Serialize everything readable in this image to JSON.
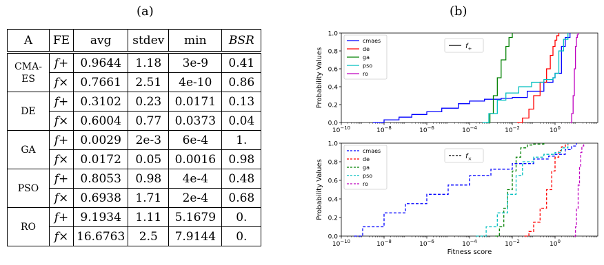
{
  "panel_a_label": "(a)",
  "panel_b_label": "(b)",
  "table": {
    "headers": [
      "A",
      "FE",
      "avg",
      "stdev",
      "min",
      "BSR"
    ],
    "groups": [
      {
        "name_lines": [
          "CMA-",
          "ES"
        ],
        "rows": [
          {
            "fe": "f+",
            "avg": "0.9644",
            "stdev": "1.18",
            "min": "3e-9",
            "bsr": "0.41"
          },
          {
            "fe": "f×",
            "avg": "0.7661",
            "stdev": "2.51",
            "min": "4e-10",
            "bsr": "0.86"
          }
        ]
      },
      {
        "name_lines": [
          "DE"
        ],
        "rows": [
          {
            "fe": "f+",
            "avg": "0.3102",
            "stdev": "0.23",
            "min": "0.0171",
            "bsr": "0.13"
          },
          {
            "fe": "f×",
            "avg": "0.6004",
            "stdev": "0.77",
            "min": "0.0373",
            "bsr": "0.04"
          }
        ]
      },
      {
        "name_lines": [
          "GA"
        ],
        "rows": [
          {
            "fe": "f+",
            "avg": "0.0029",
            "stdev": "2e-3",
            "min": "6e-4",
            "bsr": "1."
          },
          {
            "fe": "f×",
            "avg": "0.0172",
            "stdev": "0.05",
            "min": "0.0016",
            "bsr": "0.98"
          }
        ]
      },
      {
        "name_lines": [
          "PSO"
        ],
        "rows": [
          {
            "fe": "f+",
            "avg": "0.8053",
            "stdev": "0.98",
            "min": "4e-4",
            "bsr": "0.48"
          },
          {
            "fe": "f×",
            "avg": "0.6938",
            "stdev": "1.71",
            "min": "2e-4",
            "bsr": "0.68"
          }
        ]
      },
      {
        "name_lines": [
          "RO"
        ],
        "rows": [
          {
            "fe": "f+",
            "avg": "9.1934",
            "stdev": "1.11",
            "min": "5.1679",
            "bsr": "0."
          },
          {
            "fe": "f×",
            "avg": "16.6763",
            "stdev": "2.5",
            "min": "7.9144",
            "bsr": "0."
          }
        ]
      }
    ],
    "bold": [
      "0-0-min",
      "0-1-min",
      "2-0-avg",
      "2-0-stdev",
      "2-0-bsr",
      "2-1-avg",
      "2-1-stdev",
      "2-1-bsr"
    ]
  },
  "chart_data": [
    {
      "type": "line",
      "ylabel": "Probability Values",
      "xlabel": "",
      "x_scale": "log",
      "xlim": [
        1e-10,
        100
      ],
      "ylim": [
        0,
        1
      ],
      "x_ticks": [
        {
          "v": 1e-10,
          "base": "10",
          "exp": "−10"
        },
        {
          "v": 1e-08,
          "base": "10",
          "exp": "−8"
        },
        {
          "v": 1e-06,
          "base": "10",
          "exp": "−6"
        },
        {
          "v": 0.0001,
          "base": "10",
          "exp": "−4"
        },
        {
          "v": 0.01,
          "base": "10",
          "exp": "−2"
        },
        {
          "v": 1,
          "base": "10",
          "exp": "0"
        }
      ],
      "y_ticks": [
        "0.0",
        "0.2",
        "0.4",
        "0.6",
        "0.8",
        "1.0"
      ],
      "line_style": "solid",
      "legend_title": {
        "label": "f",
        "sub": "+"
      },
      "legend_placement": "top-left",
      "series": [
        {
          "name": "cmaes",
          "color": "#0000ff",
          "x": [
            3e-09,
            1e-08,
            5e-08,
            2e-07,
            1e-06,
            5e-06,
            3e-05,
            0.0001,
            0.0005,
            0.003,
            0.01,
            0.05,
            0.3,
            0.8,
            1.0,
            2,
            3,
            5
          ],
          "y": [
            0.0,
            0.03,
            0.06,
            0.09,
            0.12,
            0.16,
            0.21,
            0.24,
            0.26,
            0.27,
            0.28,
            0.35,
            0.45,
            0.5,
            0.55,
            0.85,
            0.95,
            1.0
          ]
        },
        {
          "name": "de",
          "color": "#ff0000",
          "x": [
            0.017,
            0.03,
            0.06,
            0.1,
            0.2,
            0.4,
            0.6,
            0.8,
            1.0,
            1.2,
            1.5
          ],
          "y": [
            0.0,
            0.05,
            0.15,
            0.3,
            0.45,
            0.6,
            0.75,
            0.85,
            0.92,
            0.97,
            1.0
          ]
        },
        {
          "name": "ga",
          "color": "#008000",
          "x": [
            0.0006,
            0.0009,
            0.0013,
            0.002,
            0.003,
            0.005,
            0.007,
            0.01
          ],
          "y": [
            0.0,
            0.1,
            0.3,
            0.5,
            0.7,
            0.85,
            0.95,
            1.0
          ]
        },
        {
          "name": "pso",
          "color": "#00bfbf",
          "x": [
            0.0004,
            0.0008,
            0.002,
            0.005,
            0.02,
            0.08,
            0.3,
            0.8,
            1.0,
            1.5,
            2.5,
            4
          ],
          "y": [
            0.0,
            0.1,
            0.25,
            0.33,
            0.4,
            0.45,
            0.48,
            0.5,
            0.55,
            0.8,
            0.93,
            1.0
          ]
        },
        {
          "name": "ro",
          "color": "#bf00bf",
          "x": [
            5.17,
            6,
            7,
            8,
            9,
            10,
            11,
            12
          ],
          "y": [
            0.0,
            0.1,
            0.3,
            0.6,
            0.85,
            0.95,
            0.98,
            1.0
          ]
        }
      ]
    },
    {
      "type": "line",
      "ylabel": "Probability Values",
      "xlabel": "Fitness score",
      "x_scale": "log",
      "xlim": [
        1e-10,
        100
      ],
      "ylim": [
        0,
        1
      ],
      "x_ticks": [
        {
          "v": 1e-10,
          "base": "10",
          "exp": "−10"
        },
        {
          "v": 1e-08,
          "base": "10",
          "exp": "−8"
        },
        {
          "v": 1e-06,
          "base": "10",
          "exp": "−6"
        },
        {
          "v": 0.0001,
          "base": "10",
          "exp": "−4"
        },
        {
          "v": 0.01,
          "base": "10",
          "exp": "−2"
        },
        {
          "v": 1,
          "base": "10",
          "exp": "0"
        }
      ],
      "y_ticks": [
        "0.0",
        "0.2",
        "0.4",
        "0.6",
        "0.8",
        "1.0"
      ],
      "line_style": "dashed",
      "legend_title": {
        "label": "f",
        "sub": "×"
      },
      "legend_placement": "top-left",
      "series": [
        {
          "name": "cmaes",
          "color": "#0000ff",
          "x": [
            4e-10,
            1e-09,
            1e-08,
            1e-07,
            1e-06,
            1e-05,
            0.0001,
            0.001,
            0.01,
            0.1,
            0.5,
            1,
            3,
            6,
            10
          ],
          "y": [
            0.0,
            0.1,
            0.25,
            0.35,
            0.45,
            0.55,
            0.65,
            0.72,
            0.78,
            0.83,
            0.86,
            0.88,
            0.93,
            0.97,
            1.0
          ]
        },
        {
          "name": "de",
          "color": "#ff0000",
          "x": [
            0.037,
            0.06,
            0.1,
            0.2,
            0.4,
            0.7,
            1.0,
            1.5,
            2,
            3,
            4
          ],
          "y": [
            0.0,
            0.05,
            0.15,
            0.3,
            0.5,
            0.7,
            0.85,
            0.92,
            0.96,
            0.98,
            1.0
          ]
        },
        {
          "name": "ga",
          "color": "#008000",
          "x": [
            0.0016,
            0.0025,
            0.004,
            0.006,
            0.01,
            0.015,
            0.025,
            0.05,
            0.1,
            0.3
          ],
          "y": [
            0.0,
            0.1,
            0.3,
            0.5,
            0.7,
            0.85,
            0.95,
            0.98,
            0.99,
            1.0
          ]
        },
        {
          "name": "pso",
          "color": "#00bfbf",
          "x": [
            0.0002,
            0.0006,
            0.002,
            0.006,
            0.015,
            0.03,
            0.1,
            0.3,
            1.0,
            2,
            4
          ],
          "y": [
            0.0,
            0.1,
            0.25,
            0.45,
            0.65,
            0.8,
            0.85,
            0.88,
            0.9,
            0.95,
            1.0
          ]
        },
        {
          "name": "ro",
          "color": "#bf00bf",
          "x": [
            7.9,
            9,
            10,
            12,
            14,
            16,
            18,
            22
          ],
          "y": [
            0.0,
            0.1,
            0.3,
            0.55,
            0.75,
            0.9,
            0.97,
            1.0
          ]
        }
      ]
    }
  ]
}
